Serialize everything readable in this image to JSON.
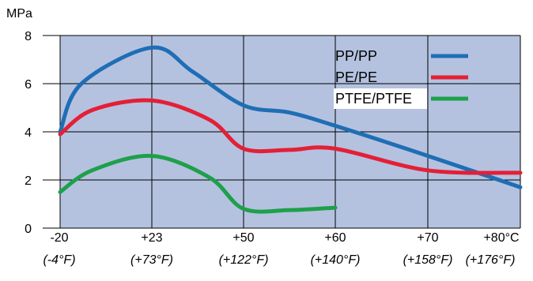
{
  "chart_data": {
    "type": "line",
    "ylabel": "MPa",
    "ylim": [
      0,
      8
    ],
    "yticks": [
      "0",
      "2",
      "4",
      "6",
      "8"
    ],
    "categories": [
      "-20",
      "+23",
      "+50",
      "+60",
      "+70",
      "+80°C"
    ],
    "categories_sub": [
      "(-4°F)",
      "(+73°F)",
      "(+122°F)",
      "(+140°F)",
      "(+158°F)",
      "(+176°F)"
    ],
    "x_values": [
      -20,
      23,
      50,
      60,
      70,
      80
    ],
    "grid": true,
    "legend_position": "top-right",
    "background_color": "#b4c2e0",
    "series": [
      {
        "name": "PP/PP",
        "color": "#1f6eb5",
        "points": [
          [
            -20,
            4.0
          ],
          [
            -10,
            6.0
          ],
          [
            23,
            7.5
          ],
          [
            35,
            6.5
          ],
          [
            50,
            5.1
          ],
          [
            55,
            4.8
          ],
          [
            60,
            4.25
          ],
          [
            70,
            3.0
          ],
          [
            80,
            1.7
          ]
        ]
      },
      {
        "name": "PE/PE",
        "color": "#e41f36",
        "points": [
          [
            -20,
            3.9
          ],
          [
            -5,
            4.9
          ],
          [
            23,
            5.3
          ],
          [
            40,
            4.5
          ],
          [
            50,
            3.3
          ],
          [
            55,
            3.25
          ],
          [
            60,
            3.3
          ],
          [
            70,
            2.4
          ],
          [
            80,
            2.3
          ]
        ]
      },
      {
        "name": "PTFE/PTFE",
        "color": "#1ea04a",
        "points": [
          [
            -20,
            1.5
          ],
          [
            -5,
            2.4
          ],
          [
            23,
            3.0
          ],
          [
            40,
            2.1
          ],
          [
            50,
            0.8
          ],
          [
            55,
            0.75
          ],
          [
            60,
            0.85
          ]
        ]
      }
    ]
  }
}
